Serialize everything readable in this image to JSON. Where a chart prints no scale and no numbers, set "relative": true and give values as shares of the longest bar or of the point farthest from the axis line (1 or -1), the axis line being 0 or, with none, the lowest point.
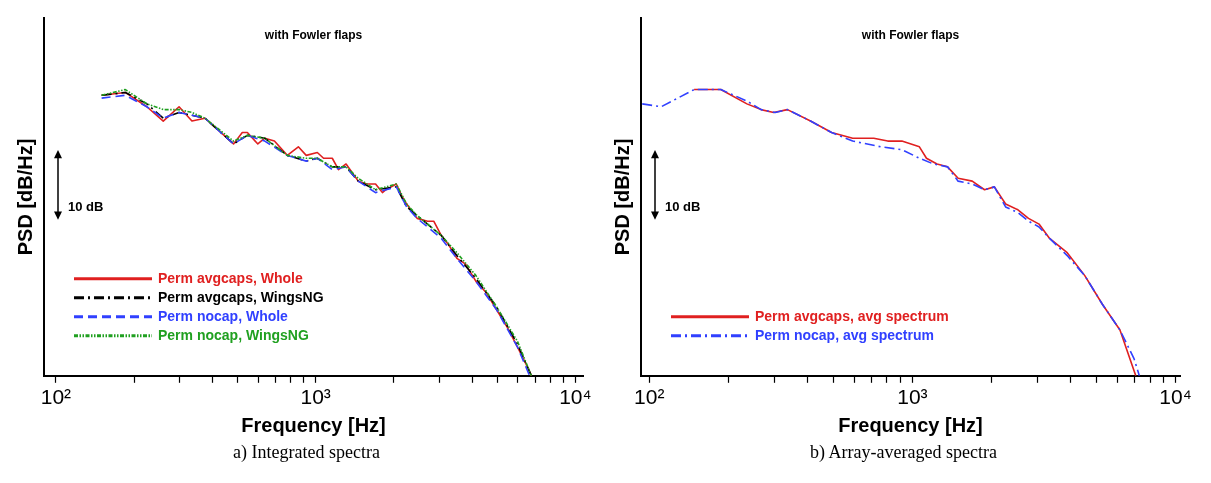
{
  "chart_data": [
    {
      "type": "line",
      "title": "with Fowler flaps",
      "xlabel": "Frequency [Hz]",
      "ylabel": "PSD [dB/Hz]",
      "relative": true,
      "log": "x",
      "grid": false,
      "marker": "none",
      "legend": "bottom left",
      "xlim": [
        90,
        10700
      ],
      "xticks": [
        {
          "value": 100,
          "label": "10²"
        },
        {
          "value": 200,
          "label": null
        },
        {
          "value": 300,
          "label": null
        },
        {
          "value": 400,
          "label": null
        },
        {
          "value": 500,
          "label": null
        },
        {
          "value": 600,
          "label": null
        },
        {
          "value": 700,
          "label": null
        },
        {
          "value": 800,
          "label": null
        },
        {
          "value": 900,
          "label": null
        },
        {
          "value": 1000,
          "label": "10³"
        },
        {
          "value": 2000,
          "label": null
        },
        {
          "value": 3000,
          "label": null
        },
        {
          "value": 4000,
          "label": null
        },
        {
          "value": 5000,
          "label": null
        },
        {
          "value": 6000,
          "label": null
        },
        {
          "value": 7000,
          "label": null
        },
        {
          "value": 8000,
          "label": null
        },
        {
          "value": 9000,
          "label": null
        },
        {
          "value": 10000,
          "label": "10⁴"
        }
      ],
      "annotations": [
        "10 dB",
        "a) Integrated spectra"
      ],
      "series": [
        {
          "name": "Perm avgcaps, Whole",
          "color": "#e02020",
          "line_style": "solid",
          "x": [
            150,
            185,
            224,
            259,
            298,
            334,
            375,
            483,
            522,
            546,
            599,
            637,
            694,
            778,
            858,
            920,
            1015,
            1073,
            1159,
            1225,
            1310,
            1459,
            1575,
            1701,
            1808,
            1865,
            2045,
            2141,
            2242,
            2459,
            2696,
            2849,
            3048,
            3240,
            3499,
            3779,
            4143,
            4543,
            4982,
            5463,
            5990,
            6466,
            6770
          ],
          "values": [
            0.98,
            0.99,
            0.94,
            0.89,
            0.94,
            0.89,
            0.9,
            0.81,
            0.85,
            0.85,
            0.81,
            0.83,
            0.82,
            0.77,
            0.8,
            0.77,
            0.78,
            0.76,
            0.76,
            0.72,
            0.74,
            0.68,
            0.67,
            0.67,
            0.64,
            0.65,
            0.67,
            0.63,
            0.6,
            0.55,
            0.54,
            0.54,
            0.49,
            0.46,
            0.41,
            0.39,
            0.33,
            0.29,
            0.23,
            0.17,
            0.1,
            0.04,
            0
          ]
        },
        {
          "name": "Perm avgcaps, WingsNG",
          "color": "#000000",
          "line_style": "dashdot",
          "x": [
            150,
            185,
            224,
            259,
            298,
            334,
            375,
            483,
            546,
            637,
            778,
            920,
            1015,
            1159,
            1310,
            1459,
            1701,
            2045,
            2242,
            2459,
            3048,
            3499,
            4143,
            4982,
            5990,
            6770
          ],
          "values": [
            0.98,
            0.99,
            0.95,
            0.9,
            0.92,
            0.91,
            0.9,
            0.81,
            0.84,
            0.83,
            0.77,
            0.75,
            0.76,
            0.73,
            0.73,
            0.68,
            0.65,
            0.66,
            0.59,
            0.56,
            0.49,
            0.42,
            0.34,
            0.24,
            0.11,
            0
          ]
        },
        {
          "name": "Perm nocap, Whole",
          "color": "#3040ff",
          "line_style": "dashed",
          "x": [
            150,
            185,
            224,
            259,
            298,
            334,
            375,
            483,
            546,
            637,
            778,
            920,
            1015,
            1159,
            1310,
            1459,
            1701,
            2045,
            2242,
            2459,
            3048,
            3499,
            4143,
            4982,
            5990,
            6668
          ],
          "values": [
            0.97,
            0.98,
            0.94,
            0.9,
            0.92,
            0.91,
            0.9,
            0.81,
            0.84,
            0.82,
            0.77,
            0.75,
            0.76,
            0.72,
            0.73,
            0.68,
            0.64,
            0.66,
            0.59,
            0.55,
            0.48,
            0.41,
            0.33,
            0.23,
            0.1,
            0
          ]
        },
        {
          "name": "Perm nocap, WingsNG",
          "color": "#20a020",
          "line_style": "dashdotdot",
          "x": [
            150,
            185,
            224,
            259,
            298,
            334,
            375,
            483,
            546,
            637,
            778,
            920,
            1015,
            1159,
            1310,
            1459,
            1701,
            2045,
            2242,
            2459,
            3048,
            3499,
            4143,
            4982,
            5990,
            6770
          ],
          "values": [
            0.98,
            1,
            0.95,
            0.93,
            0.93,
            0.92,
            0.9,
            0.82,
            0.84,
            0.83,
            0.77,
            0.76,
            0.76,
            0.73,
            0.73,
            0.69,
            0.65,
            0.67,
            0.6,
            0.56,
            0.49,
            0.43,
            0.35,
            0.24,
            0.12,
            0
          ]
        }
      ]
    },
    {
      "type": "line",
      "title": "with Fowler flaps",
      "xlabel": "Frequency [Hz]",
      "ylabel": "PSD [dB/Hz]",
      "relative": true,
      "log": "x",
      "grid": false,
      "marker": "none",
      "legend": "bottom left",
      "xlim": [
        93,
        10400
      ],
      "xticks": [
        {
          "value": 100,
          "label": "10²"
        },
        {
          "value": 200,
          "label": null
        },
        {
          "value": 300,
          "label": null
        },
        {
          "value": 400,
          "label": null
        },
        {
          "value": 500,
          "label": null
        },
        {
          "value": 600,
          "label": null
        },
        {
          "value": 700,
          "label": null
        },
        {
          "value": 800,
          "label": null
        },
        {
          "value": 900,
          "label": null
        },
        {
          "value": 1000,
          "label": "10³"
        },
        {
          "value": 2000,
          "label": null
        },
        {
          "value": 3000,
          "label": null
        },
        {
          "value": 4000,
          "label": null
        },
        {
          "value": 5000,
          "label": null
        },
        {
          "value": 6000,
          "label": null
        },
        {
          "value": 7000,
          "label": null
        },
        {
          "value": 8000,
          "label": null
        },
        {
          "value": 9000,
          "label": null
        },
        {
          "value": 10000,
          "label": "10⁴"
        }
      ],
      "annotations": [
        "10 dB",
        "b) Array-averaged spectra"
      ],
      "series": [
        {
          "name": "Perm avgcaps, avg spectrum",
          "color": "#e02020",
          "line_style": "solid",
          "x": [
            148,
            187,
            235,
            266,
            297,
            335,
            410,
            493,
            593,
            713,
            806,
            912,
            1063,
            1131,
            1240,
            1360,
            1492,
            1688,
            1880,
            2049,
            2261,
            2518,
            2762,
            3029,
            3322,
            3875,
            4520,
            5272,
            6150,
            7063
          ],
          "values": [
            1,
            1,
            0.95,
            0.93,
            0.92,
            0.93,
            0.89,
            0.85,
            0.83,
            0.83,
            0.82,
            0.82,
            0.8,
            0.76,
            0.74,
            0.73,
            0.69,
            0.68,
            0.65,
            0.66,
            0.6,
            0.58,
            0.55,
            0.53,
            0.48,
            0.43,
            0.35,
            0.25,
            0.16,
            0
          ]
        },
        {
          "name": "Perm nocap, avg spectrum",
          "color": "#3040ff",
          "line_style": "dashdot",
          "x": [
            94,
            111,
            148,
            187,
            235,
            266,
            301,
            335,
            410,
            493,
            593,
            758,
            912,
            1063,
            1203,
            1360,
            1492,
            1688,
            1880,
            2049,
            2261,
            2518,
            2762,
            3029,
            3322,
            3875,
            4520,
            5272,
            6150,
            6954,
            7286
          ],
          "values": [
            0.95,
            0.94,
            1,
            1,
            0.96,
            0.93,
            0.92,
            0.93,
            0.89,
            0.85,
            0.82,
            0.8,
            0.79,
            0.76,
            0.74,
            0.73,
            0.68,
            0.67,
            0.65,
            0.66,
            0.59,
            0.57,
            0.54,
            0.52,
            0.48,
            0.42,
            0.35,
            0.25,
            0.16,
            0.06,
            0
          ]
        }
      ]
    }
  ]
}
